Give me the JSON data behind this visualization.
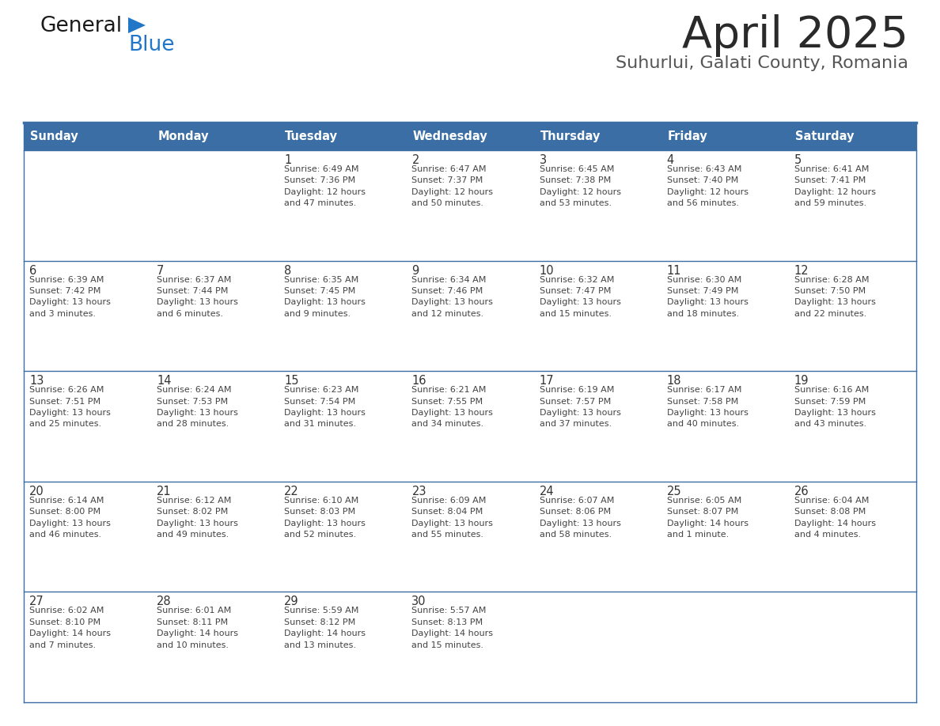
{
  "title": "April 2025",
  "subtitle": "Suhurlui, Galati County, Romania",
  "header_bg_color": "#3a6ea5",
  "header_text_color": "#ffffff",
  "cell_bg_color": "#f2f6fb",
  "day_names": [
    "Sunday",
    "Monday",
    "Tuesday",
    "Wednesday",
    "Thursday",
    "Friday",
    "Saturday"
  ],
  "grid_line_color": "#3a6ea5",
  "day_number_color": "#333333",
  "cell_text_color": "#444444",
  "title_color": "#2a2a2a",
  "subtitle_color": "#555555",
  "logo_text_color": "#1a1a1a",
  "logo_blue_color": "#2176c7",
  "calendar": [
    [
      {
        "day": null,
        "info": ""
      },
      {
        "day": null,
        "info": ""
      },
      {
        "day": 1,
        "info": "Sunrise: 6:49 AM\nSunset: 7:36 PM\nDaylight: 12 hours\nand 47 minutes."
      },
      {
        "day": 2,
        "info": "Sunrise: 6:47 AM\nSunset: 7:37 PM\nDaylight: 12 hours\nand 50 minutes."
      },
      {
        "day": 3,
        "info": "Sunrise: 6:45 AM\nSunset: 7:38 PM\nDaylight: 12 hours\nand 53 minutes."
      },
      {
        "day": 4,
        "info": "Sunrise: 6:43 AM\nSunset: 7:40 PM\nDaylight: 12 hours\nand 56 minutes."
      },
      {
        "day": 5,
        "info": "Sunrise: 6:41 AM\nSunset: 7:41 PM\nDaylight: 12 hours\nand 59 minutes."
      }
    ],
    [
      {
        "day": 6,
        "info": "Sunrise: 6:39 AM\nSunset: 7:42 PM\nDaylight: 13 hours\nand 3 minutes."
      },
      {
        "day": 7,
        "info": "Sunrise: 6:37 AM\nSunset: 7:44 PM\nDaylight: 13 hours\nand 6 minutes."
      },
      {
        "day": 8,
        "info": "Sunrise: 6:35 AM\nSunset: 7:45 PM\nDaylight: 13 hours\nand 9 minutes."
      },
      {
        "day": 9,
        "info": "Sunrise: 6:34 AM\nSunset: 7:46 PM\nDaylight: 13 hours\nand 12 minutes."
      },
      {
        "day": 10,
        "info": "Sunrise: 6:32 AM\nSunset: 7:47 PM\nDaylight: 13 hours\nand 15 minutes."
      },
      {
        "day": 11,
        "info": "Sunrise: 6:30 AM\nSunset: 7:49 PM\nDaylight: 13 hours\nand 18 minutes."
      },
      {
        "day": 12,
        "info": "Sunrise: 6:28 AM\nSunset: 7:50 PM\nDaylight: 13 hours\nand 22 minutes."
      }
    ],
    [
      {
        "day": 13,
        "info": "Sunrise: 6:26 AM\nSunset: 7:51 PM\nDaylight: 13 hours\nand 25 minutes."
      },
      {
        "day": 14,
        "info": "Sunrise: 6:24 AM\nSunset: 7:53 PM\nDaylight: 13 hours\nand 28 minutes."
      },
      {
        "day": 15,
        "info": "Sunrise: 6:23 AM\nSunset: 7:54 PM\nDaylight: 13 hours\nand 31 minutes."
      },
      {
        "day": 16,
        "info": "Sunrise: 6:21 AM\nSunset: 7:55 PM\nDaylight: 13 hours\nand 34 minutes."
      },
      {
        "day": 17,
        "info": "Sunrise: 6:19 AM\nSunset: 7:57 PM\nDaylight: 13 hours\nand 37 minutes."
      },
      {
        "day": 18,
        "info": "Sunrise: 6:17 AM\nSunset: 7:58 PM\nDaylight: 13 hours\nand 40 minutes."
      },
      {
        "day": 19,
        "info": "Sunrise: 6:16 AM\nSunset: 7:59 PM\nDaylight: 13 hours\nand 43 minutes."
      }
    ],
    [
      {
        "day": 20,
        "info": "Sunrise: 6:14 AM\nSunset: 8:00 PM\nDaylight: 13 hours\nand 46 minutes."
      },
      {
        "day": 21,
        "info": "Sunrise: 6:12 AM\nSunset: 8:02 PM\nDaylight: 13 hours\nand 49 minutes."
      },
      {
        "day": 22,
        "info": "Sunrise: 6:10 AM\nSunset: 8:03 PM\nDaylight: 13 hours\nand 52 minutes."
      },
      {
        "day": 23,
        "info": "Sunrise: 6:09 AM\nSunset: 8:04 PM\nDaylight: 13 hours\nand 55 minutes."
      },
      {
        "day": 24,
        "info": "Sunrise: 6:07 AM\nSunset: 8:06 PM\nDaylight: 13 hours\nand 58 minutes."
      },
      {
        "day": 25,
        "info": "Sunrise: 6:05 AM\nSunset: 8:07 PM\nDaylight: 14 hours\nand 1 minute."
      },
      {
        "day": 26,
        "info": "Sunrise: 6:04 AM\nSunset: 8:08 PM\nDaylight: 14 hours\nand 4 minutes."
      }
    ],
    [
      {
        "day": 27,
        "info": "Sunrise: 6:02 AM\nSunset: 8:10 PM\nDaylight: 14 hours\nand 7 minutes."
      },
      {
        "day": 28,
        "info": "Sunrise: 6:01 AM\nSunset: 8:11 PM\nDaylight: 14 hours\nand 10 minutes."
      },
      {
        "day": 29,
        "info": "Sunrise: 5:59 AM\nSunset: 8:12 PM\nDaylight: 14 hours\nand 13 minutes."
      },
      {
        "day": 30,
        "info": "Sunrise: 5:57 AM\nSunset: 8:13 PM\nDaylight: 14 hours\nand 15 minutes."
      },
      {
        "day": null,
        "info": ""
      },
      {
        "day": null,
        "info": ""
      },
      {
        "day": null,
        "info": ""
      }
    ]
  ]
}
